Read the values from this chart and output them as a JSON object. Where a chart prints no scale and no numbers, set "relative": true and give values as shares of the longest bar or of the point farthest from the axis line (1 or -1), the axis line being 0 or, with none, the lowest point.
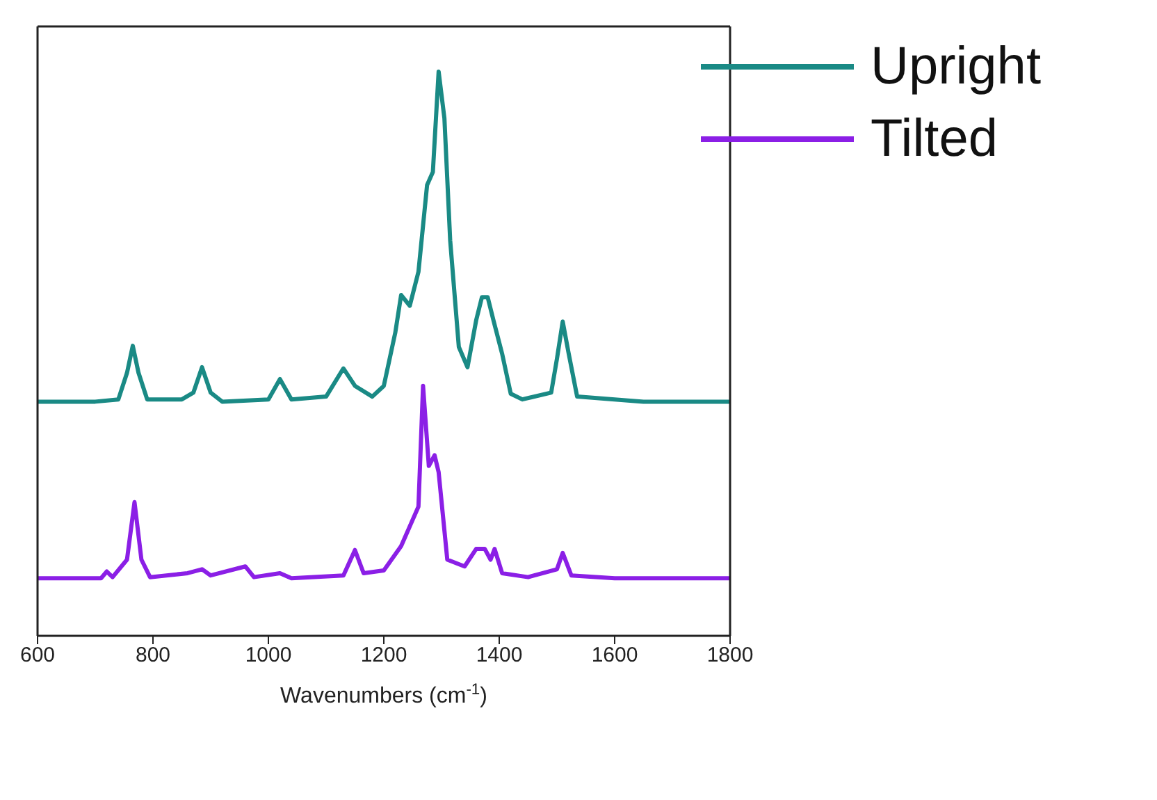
{
  "chart_data": {
    "type": "line",
    "relative": true,
    "xlabel": "Wavenumbers (cm$^{-1}$)",
    "xlim": [
      600,
      1800
    ],
    "xticks": [
      600,
      800,
      1000,
      1200,
      1400,
      1600,
      1800
    ],
    "tick_labels": "x",
    "legend": "top right",
    "grid": false,
    "marker": "none",
    "line_style": "solid",
    "series": [
      {
        "name": "Upright",
        "color": "#1a8a85",
        "x": [
          600,
          700,
          740,
          755,
          765,
          775,
          790,
          850,
          870,
          885,
          900,
          920,
          1000,
          1020,
          1040,
          1100,
          1130,
          1150,
          1180,
          1200,
          1220,
          1230,
          1245,
          1260,
          1275,
          1285,
          1295,
          1305,
          1315,
          1330,
          1345,
          1360,
          1370,
          1380,
          1390,
          1405,
          1420,
          1440,
          1490,
          1500,
          1510,
          1520,
          1535,
          1600,
          1650,
          1800
        ],
        "values": [
          0.415,
          0.415,
          0.419,
          0.466,
          0.514,
          0.466,
          0.419,
          0.419,
          0.431,
          0.476,
          0.431,
          0.415,
          0.419,
          0.455,
          0.419,
          0.424,
          0.474,
          0.443,
          0.424,
          0.443,
          0.538,
          0.604,
          0.585,
          0.645,
          0.799,
          0.822,
          1.0,
          0.917,
          0.701,
          0.512,
          0.476,
          0.559,
          0.6,
          0.6,
          0.559,
          0.5,
          0.429,
          0.419,
          0.431,
          0.491,
          0.557,
          0.502,
          0.424,
          0.419,
          0.415,
          0.415
        ]
      },
      {
        "name": "Tilted",
        "color": "#8b1fe6",
        "x": [
          600,
          710,
          720,
          730,
          755,
          768,
          780,
          795,
          860,
          885,
          900,
          960,
          975,
          1020,
          1040,
          1130,
          1150,
          1165,
          1200,
          1230,
          1245,
          1260,
          1268,
          1278,
          1288,
          1295,
          1310,
          1340,
          1360,
          1375,
          1385,
          1392,
          1405,
          1450,
          1500,
          1510,
          1525,
          1600,
          1800
        ],
        "values": [
          0.102,
          0.102,
          0.114,
          0.104,
          0.135,
          0.237,
          0.135,
          0.104,
          0.111,
          0.118,
          0.107,
          0.123,
          0.104,
          0.111,
          0.102,
          0.107,
          0.152,
          0.111,
          0.116,
          0.159,
          0.194,
          0.229,
          0.443,
          0.301,
          0.32,
          0.29,
          0.135,
          0.123,
          0.154,
          0.154,
          0.135,
          0.154,
          0.111,
          0.104,
          0.118,
          0.147,
          0.107,
          0.102,
          0.102
        ]
      }
    ]
  }
}
